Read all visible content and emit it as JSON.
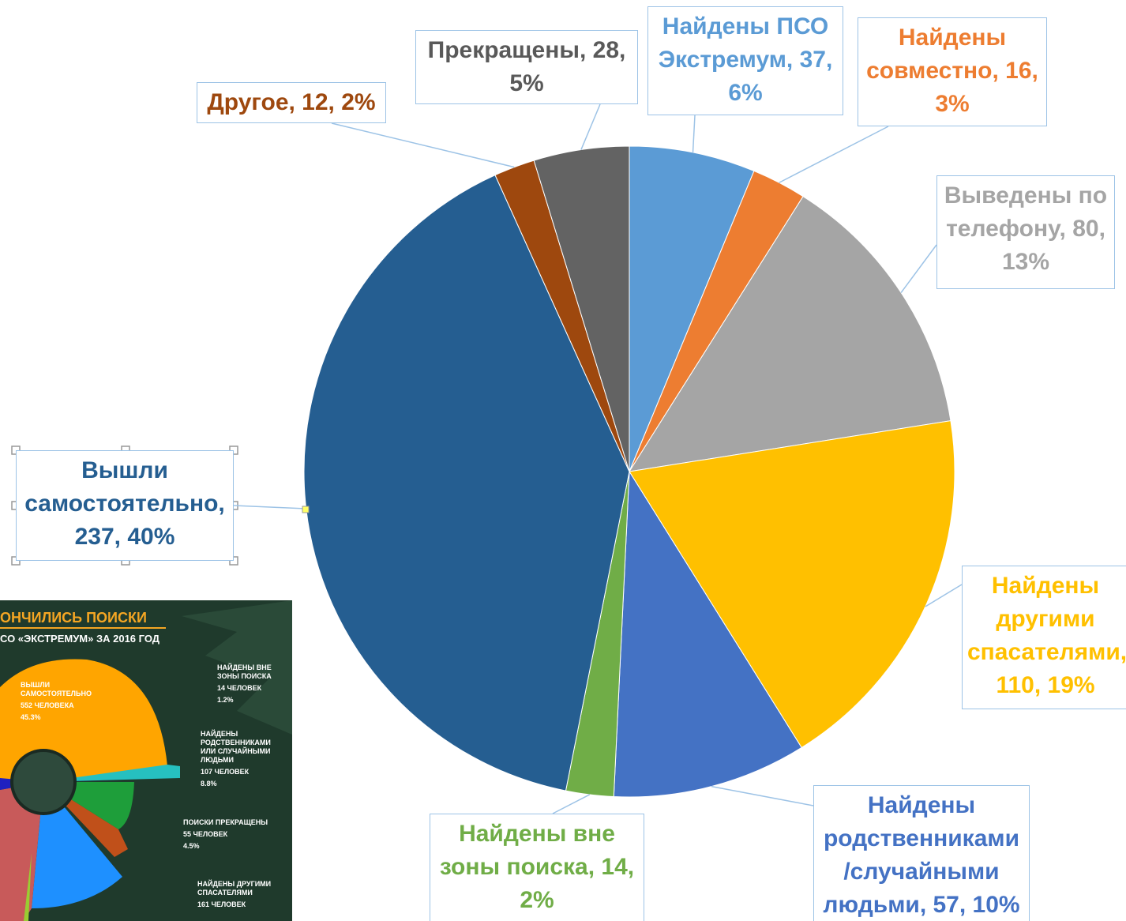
{
  "chart_data": {
    "type": "pie",
    "values": [
      37,
      16,
      80,
      110,
      57,
      14,
      237,
      12,
      28
    ],
    "value_labels": [
      "Найдены ПСО Экстремум, 37, 6%",
      "Найдены совместно, 16, 3%",
      "Выведены по телефону, 80, 13%",
      "Найдены другими спасателями, 110, 19%",
      "Найдены родственниками /случайными людьми, 57, 10%",
      "Найдены вне зоны поиска, 14, 2%",
      "Вышли самостоятельно, 237, 40%",
      "Другое, 12, 2%",
      "Прекращены, 28, 5%"
    ],
    "colors": [
      "#5b9bd5",
      "#ed7d31",
      "#a5a5a5",
      "#ffc000",
      "#4472c4",
      "#70ad47",
      "#255e91",
      "#9e480e",
      "#636363"
    ],
    "label_colors": [
      "#5b9bd5",
      "#ed7d31",
      "#a5a5a5",
      "#ffc000",
      "#4472c4",
      "#70ad47",
      "#255e91",
      "#9e480e",
      "#595959"
    ]
  },
  "inset": {
    "title": "ОНЧИЛИСЬ ПОИСКИ",
    "subtitle": "СО «ЭКСТРЕМУМ» ЗА 2016 ГОД",
    "labels": [
      [
        "ВЫШЛИ САМОСТОЯТЕЛЬНО",
        "552 ЧЕЛОВЕКА",
        "45.3%"
      ],
      [
        "НАЙДЕНЫ ВНЕ ЗОНЫ ПОИСКА",
        "14 ЧЕЛОВЕК",
        "1.2%"
      ],
      [
        "НАЙДЕНЫ РОДСТВЕННИКАМИ ИЛИ СЛУЧАЙНЫМИ ЛЮДЬМИ",
        "107 ЧЕЛОВЕК",
        "8.8%"
      ],
      [
        "ПОИСКИ ПРЕКРАЩЕНЫ",
        "55 ЧЕЛОВЕК",
        "4.5%"
      ],
      [
        "НАЙДЕНЫ ДРУГИМИ СПАСАТЕЛЯМИ",
        "161 ЧЕЛОВЕК"
      ]
    ]
  }
}
